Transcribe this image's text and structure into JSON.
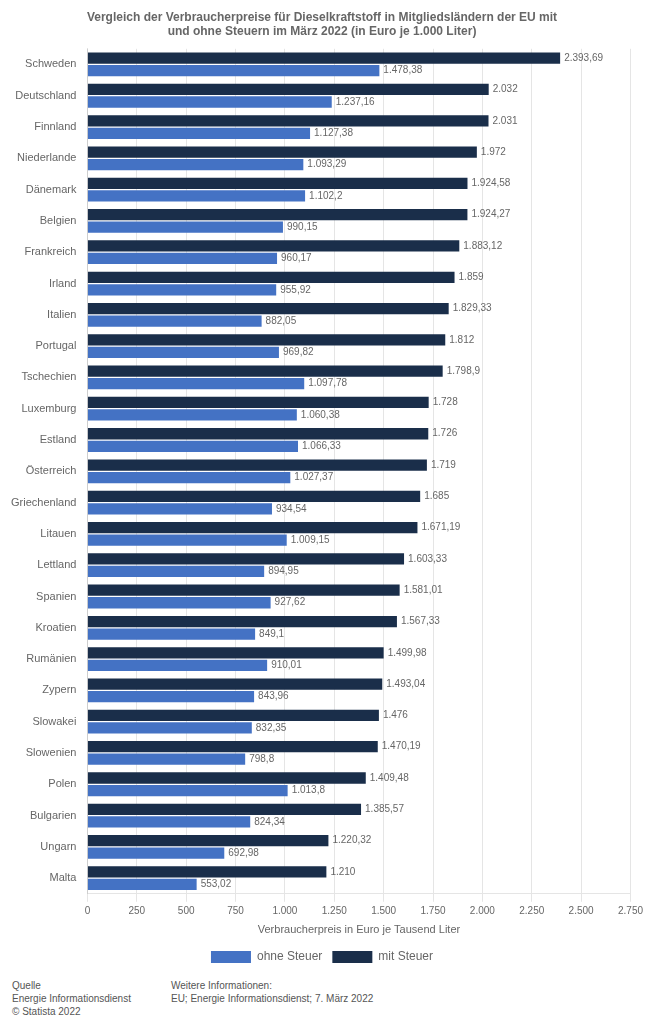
{
  "chart_data": {
    "type": "bar",
    "orientation": "horizontal",
    "title": "Vergleich der Verbraucherpreise für Dieselkraftstoff in Mitgliedsländern der EU mit\nund ohne Steuern im März 2022 (in Euro je 1.000 Liter)",
    "xlabel": "Verbraucherpreis in Euro je Tausend Liter",
    "categories": [
      "Schweden",
      "Deutschland",
      "Finnland",
      "Niederlande",
      "Dänemark",
      "Belgien",
      "Frankreich",
      "Irland",
      "Italien",
      "Portugal",
      "Tschechien",
      "Luxemburg",
      "Estland",
      "Österreich",
      "Griechenland",
      "Litauen",
      "Lettland",
      "Spanien",
      "Kroatien",
      "Rumänien",
      "Zypern",
      "Slowakei",
      "Slowenien",
      "Polen",
      "Bulgarien",
      "Ungarn",
      "Malta"
    ],
    "series": [
      {
        "name": "mit Steuer",
        "color": "#1a2e4a",
        "values": [
          2393.69,
          2032,
          2031,
          1972,
          1924.58,
          1924.27,
          1883.12,
          1859,
          1829.33,
          1812,
          1798.9,
          1728,
          1726,
          1719,
          1685,
          1671.19,
          1603.33,
          1581.01,
          1567.33,
          1499.98,
          1493.04,
          1476,
          1470.19,
          1409.48,
          1385.57,
          1220.32,
          1210
        ],
        "value_labels": [
          "2.393,69",
          "2.032",
          "2.031",
          "1.972",
          "1.924,58",
          "1.924,27",
          "1.883,12",
          "1.859",
          "1.829,33",
          "1.812",
          "1.798,9",
          "1.728",
          "1.726",
          "1.719",
          "1.685",
          "1.671,19",
          "1.603,33",
          "1.581,01",
          "1.567,33",
          "1.499,98",
          "1.493,04",
          "1.476",
          "1.470,19",
          "1.409,48",
          "1.385,57",
          "1.220,32",
          "1.210"
        ]
      },
      {
        "name": "ohne Steuer",
        "color": "#4472c4",
        "values": [
          1478.38,
          1237.16,
          1127.38,
          1093.29,
          1102.2,
          990.15,
          960.17,
          955.92,
          882.05,
          969.82,
          1097.78,
          1060.38,
          1066.33,
          1027.37,
          934.54,
          1009.15,
          894.95,
          927.62,
          849.1,
          910.01,
          843.96,
          832.35,
          798.8,
          1013.8,
          824.34,
          692.98,
          553.02
        ],
        "value_labels": [
          "1.478,38",
          "1.237,16",
          "1.127,38",
          "1.093,29",
          "1.102,2",
          "990,15",
          "960,17",
          "955,92",
          "882,05",
          "969,82",
          "1.097,78",
          "1.060,38",
          "1.066,33",
          "1.027,37",
          "934,54",
          "1.009,15",
          "894,95",
          "927,62",
          "849,1",
          "910,01",
          "843,96",
          "832,35",
          "798,8",
          "1.013,8",
          "824,34",
          "692,98",
          "553,02"
        ]
      }
    ],
    "xlim": [
      0,
      2750
    ],
    "xticks": [
      0,
      250,
      500,
      750,
      {
        "value": 1000,
        "label": "1.000"
      },
      {
        "value": 1250,
        "label": "1.250"
      },
      {
        "value": 1500,
        "label": "1.500"
      },
      {
        "value": 1750,
        "label": "1.750"
      },
      {
        "value": 2000,
        "label": "2.000"
      },
      {
        "value": 2250,
        "label": "2.250"
      },
      {
        "value": 2500,
        "label": "2.500"
      },
      {
        "value": 2750,
        "label": "2.750"
      }
    ],
    "grid": true,
    "legend": "bottom",
    "data_labels": true,
    "annotations": [
      "Quelle\nEnergie Informationsdienst\n© Statista 2022",
      "Weitere Informationen:\nEU; Energie Informationsdienst; 7. März 2022"
    ]
  }
}
